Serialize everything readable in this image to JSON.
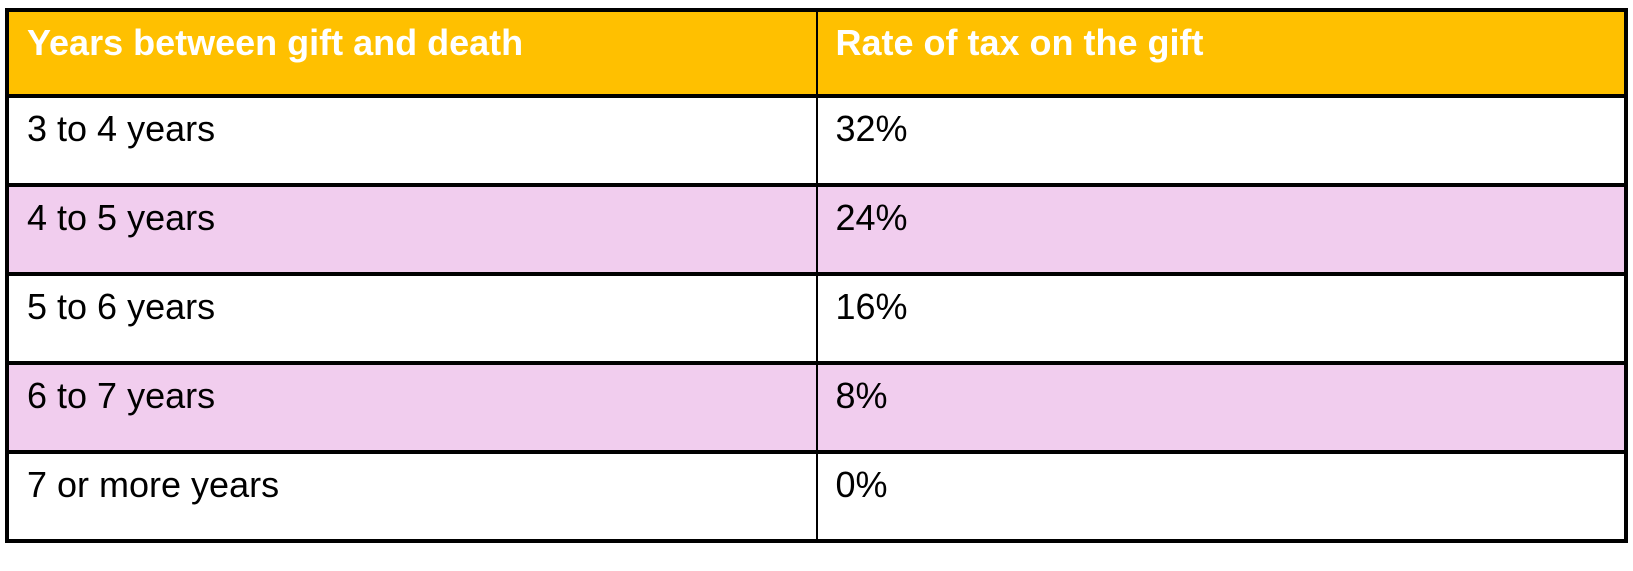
{
  "table": {
    "columns": [
      {
        "label": "Years between gift and death"
      },
      {
        "label": "Rate of tax on the gift"
      }
    ],
    "rows": [
      {
        "years": "3 to 4 years",
        "rate": "32%",
        "highlighted": false
      },
      {
        "years": "4 to 5 years",
        "rate": "24%",
        "highlighted": true
      },
      {
        "years": "5 to 6 years",
        "rate": "16%",
        "highlighted": false
      },
      {
        "years": "6 to 7 years",
        "rate": "8%",
        "highlighted": true
      },
      {
        "years": "7 or more years",
        "rate": "0%",
        "highlighted": false
      }
    ],
    "colors": {
      "header_bg": "#FFC000",
      "header_text": "#FFFFFF",
      "row_bg": "#FFFFFF",
      "row_alt_bg": "#F1CDEE",
      "border": "#000000",
      "body_text": "#000000"
    }
  }
}
